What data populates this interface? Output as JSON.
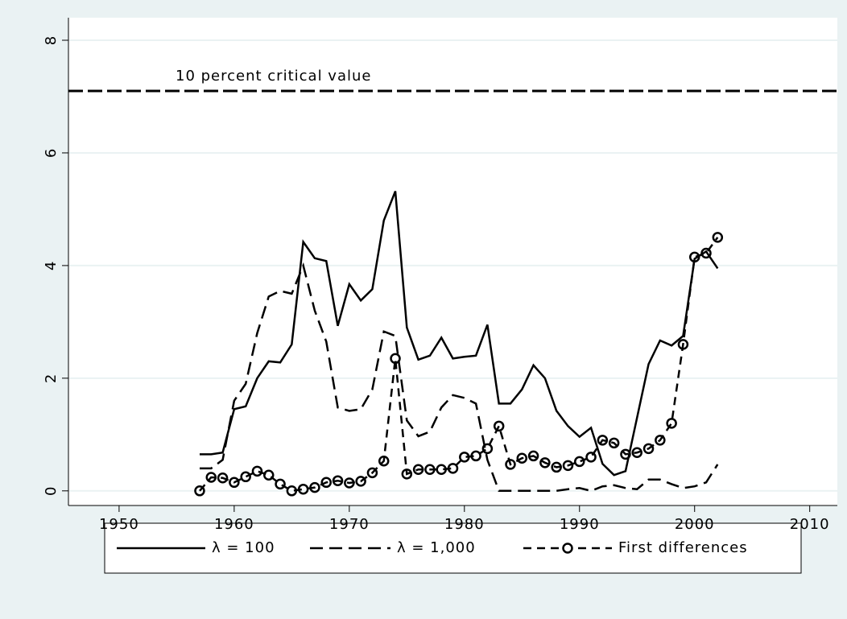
{
  "chart_data": {
    "type": "line",
    "x": [
      1957,
      1958,
      1959,
      1960,
      1961,
      1962,
      1963,
      1964,
      1965,
      1966,
      1967,
      1968,
      1969,
      1970,
      1971,
      1972,
      1973,
      1974,
      1975,
      1976,
      1977,
      1978,
      1979,
      1980,
      1981,
      1982,
      1983,
      1984,
      1985,
      1986,
      1987,
      1988,
      1989,
      1990,
      1991,
      1992,
      1993,
      1994,
      1995,
      1996,
      1997,
      1998,
      1999,
      2000,
      2001,
      2002
    ],
    "series": [
      {
        "name": "λ = 100",
        "color": "#000000",
        "dash": "solid",
        "marker": "none",
        "values": [
          0.65,
          0.65,
          0.68,
          1.45,
          1.5,
          2.0,
          2.3,
          2.28,
          2.6,
          4.42,
          4.13,
          4.08,
          2.93,
          3.67,
          3.38,
          3.58,
          4.8,
          5.32,
          2.9,
          2.33,
          2.4,
          2.72,
          2.35,
          2.38,
          2.4,
          2.95,
          1.55,
          1.55,
          1.8,
          2.23,
          2.0,
          1.42,
          1.15,
          0.96,
          1.12,
          0.48,
          0.28,
          0.35,
          1.3,
          2.25,
          2.67,
          2.58,
          2.75,
          4.12,
          4.25,
          3.95
        ]
      },
      {
        "name": "λ = 1,000",
        "color": "#000000",
        "dash": "long-dash",
        "marker": "none",
        "values": [
          0.4,
          0.4,
          0.55,
          1.6,
          1.9,
          2.8,
          3.45,
          3.55,
          3.5,
          4.0,
          3.2,
          2.65,
          1.48,
          1.42,
          1.45,
          1.8,
          2.83,
          2.75,
          1.25,
          0.97,
          1.05,
          1.48,
          1.7,
          1.65,
          1.55,
          0.55,
          0.0,
          0.0,
          0.0,
          0.0,
          0.0,
          0.0,
          0.03,
          0.05,
          0.0,
          0.08,
          0.1,
          0.05,
          0.03,
          0.2,
          0.2,
          0.12,
          0.05,
          0.08,
          0.15,
          0.47
        ]
      },
      {
        "name": "First differences",
        "color": "#000000",
        "dash": "dash",
        "marker": "circle",
        "values": [
          0.0,
          0.24,
          0.23,
          0.15,
          0.25,
          0.35,
          0.28,
          0.12,
          0.0,
          0.03,
          0.06,
          0.15,
          0.18,
          0.14,
          0.17,
          0.32,
          0.53,
          2.35,
          0.3,
          0.38,
          0.38,
          0.38,
          0.4,
          0.6,
          0.62,
          0.75,
          1.15,
          0.47,
          0.58,
          0.62,
          0.5,
          0.42,
          0.45,
          0.52,
          0.6,
          0.9,
          0.85,
          0.65,
          0.68,
          0.75,
          0.9,
          1.2,
          2.6,
          4.15,
          4.22,
          4.5
        ]
      }
    ],
    "reference_line": {
      "value": 7.1,
      "label": "10 percent critical value"
    },
    "xlim": [
      1945.6,
      2012.4
    ],
    "ylim": [
      -0.26,
      8.4
    ],
    "xticks": [
      1950,
      1960,
      1970,
      1980,
      1990,
      2000,
      2010
    ],
    "yticks": [
      0,
      2,
      4,
      6,
      8
    ],
    "grid": true,
    "legend": "bottom"
  }
}
